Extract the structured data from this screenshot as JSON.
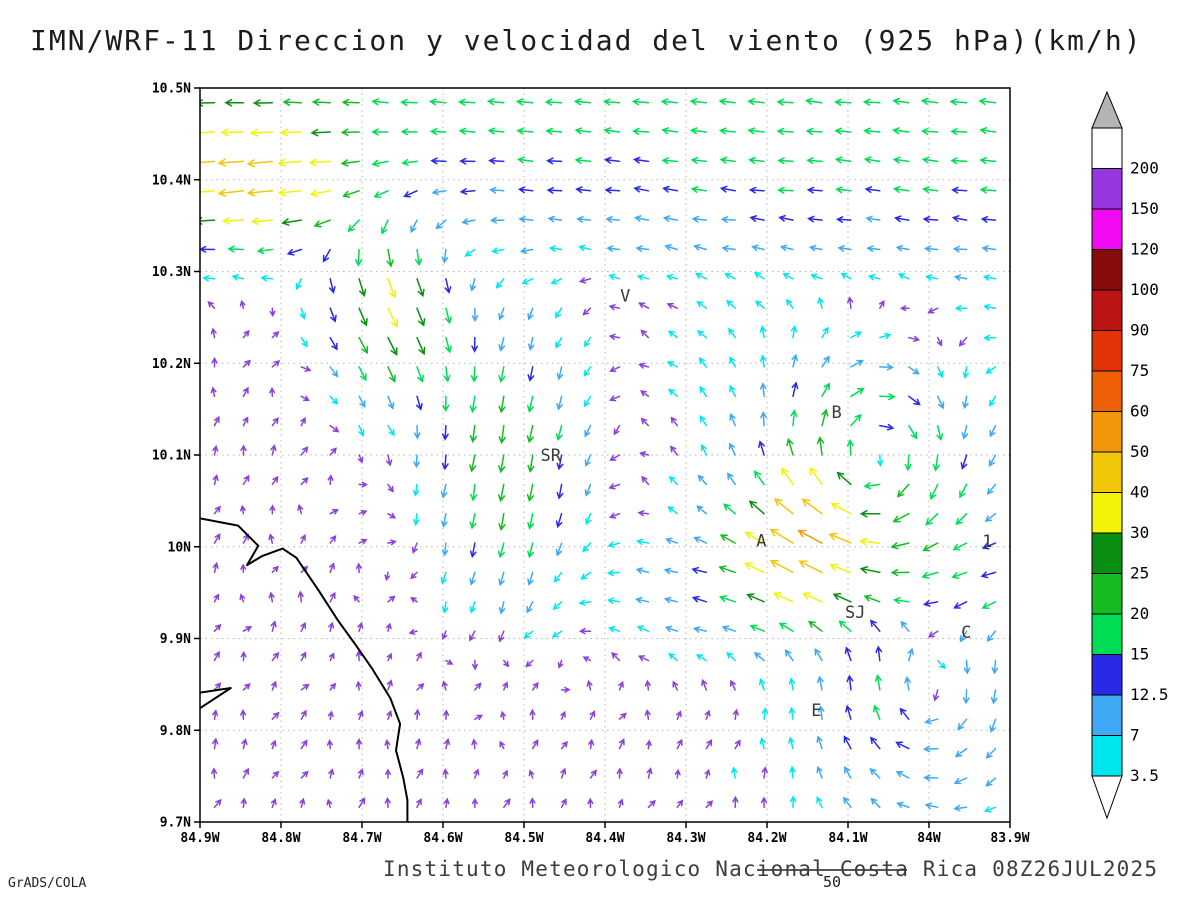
{
  "title": "IMN/WRF-11 Direccion y velocidad del viento (925 hPa)(km/h)",
  "footer": {
    "caption": "Instituto Meteorologico Nacional Costa Rica 08Z26JUL2025",
    "credit": "GrADS/COLA",
    "ref_value": "50"
  },
  "chart_data": {
    "type": "vector_field",
    "title": "IMN/WRF-11 Direccion y velocidad del viento (925 hPa)(km/h)",
    "model": "IMN/WRF-11",
    "variable": "Direccion y velocidad del viento",
    "level": "925 hPa",
    "units": "km/h",
    "valid_time": "08Z26JUL2025",
    "lon_range": [
      84.9,
      83.9
    ],
    "lat_range": [
      9.7,
      10.5
    ],
    "grid_step_deg": 0.1,
    "x_ticks": {
      "values": [
        84.9,
        84.8,
        84.7,
        84.6,
        84.5,
        84.4,
        84.3,
        84.2,
        84.1,
        84.0,
        83.9
      ],
      "labels": [
        "84.9W",
        "84.8W",
        "84.7W",
        "84.6W",
        "84.5W",
        "84.4W",
        "84.3W",
        "84.2W",
        "84.1W",
        "84W",
        "83.9W"
      ]
    },
    "y_ticks": {
      "values": [
        10.5,
        10.4,
        10.3,
        10.2,
        10.1,
        10.0,
        9.9,
        9.8,
        9.7
      ],
      "labels": [
        "10.5N",
        "10.4N",
        "10.3N",
        "10.2N",
        "10.1N",
        "10N",
        "9.9N",
        "9.8N",
        "9.7N"
      ]
    },
    "colorbar": {
      "levels": [
        3.5,
        7,
        12.5,
        15,
        20,
        25,
        30,
        40,
        50,
        60,
        75,
        90,
        100,
        120,
        150,
        200
      ],
      "labels": [
        "3.5",
        "7",
        "12.5",
        "15",
        "20",
        "25",
        "30",
        "40",
        "50",
        "60",
        "75",
        "90",
        "100",
        "120",
        "150",
        "200"
      ],
      "band_colors": [
        "#00e6ee",
        "#3fa8f5",
        "#2a2ae6",
        "#00dd55",
        "#15bb22",
        "#0b8f12",
        "#f2f20a",
        "#f2c70a",
        "#f2970a",
        "#ee5f07",
        "#e23307",
        "#bb1414",
        "#870d0d",
        "#f20af2",
        "#9636e0",
        "#ffffff"
      ],
      "below_color": "#ffffff",
      "above_triangle_color": "#b4b4b4"
    },
    "arrow_slow_color": "#8c3fd9",
    "grid": {
      "cols": 28,
      "rows": 25
    },
    "station_labels": [
      {
        "text": "V",
        "lon": 84.375,
        "lat": 10.274
      },
      {
        "text": "B",
        "lon": 84.114,
        "lat": 10.147
      },
      {
        "text": "SR",
        "lon": 84.467,
        "lat": 10.1
      },
      {
        "text": "A",
        "lon": 84.207,
        "lat": 10.007
      },
      {
        "text": "1",
        "lon": 83.928,
        "lat": 10.006
      },
      {
        "text": "SJ",
        "lon": 84.091,
        "lat": 9.929
      },
      {
        "text": "C",
        "lon": 83.954,
        "lat": 9.907
      },
      {
        "text": "E",
        "lon": 84.139,
        "lat": 9.822
      }
    ],
    "coastline": [
      [
        [
          84.9,
          10.031
        ],
        [
          84.853,
          10.023
        ],
        [
          84.828,
          10.001
        ],
        [
          84.842,
          9.98
        ],
        [
          84.823,
          9.99
        ],
        [
          84.798,
          9.998
        ],
        [
          84.781,
          9.988
        ],
        [
          84.754,
          9.953
        ],
        [
          84.73,
          9.92
        ],
        [
          84.707,
          9.892
        ],
        [
          84.688,
          9.868
        ],
        [
          84.665,
          9.835
        ],
        [
          84.653,
          9.807
        ],
        [
          84.658,
          9.778
        ],
        [
          84.649,
          9.748
        ],
        [
          84.644,
          9.724
        ],
        [
          84.644,
          9.7
        ]
      ],
      [
        [
          84.9,
          9.841
        ],
        [
          84.862,
          9.846
        ],
        [
          84.9,
          9.824
        ]
      ]
    ],
    "flow_model": {
      "base": {
        "u": 0.7,
        "v": 1.7
      },
      "noise_amp": 1.0,
      "north_band": {
        "lat0": 10.315,
        "width": 0.025,
        "u_edge": -11,
        "du_dlat": -45
      },
      "lat_bands": [
        {
          "lat0": 9.95,
          "slat": 0.07,
          "u": -18,
          "lon_edge": 84.33,
          "slon": 0.09
        },
        {
          "lat0": 10.18,
          "slat": 0.2,
          "u": -8,
          "lon_edge": 84.28,
          "slon": 0.12
        }
      ],
      "jets": [
        {
          "lon": 84.83,
          "lat": 10.4,
          "slon": 0.12,
          "slat": 0.07,
          "u": -34,
          "v": -6
        },
        {
          "lon": 84.67,
          "lat": 10.27,
          "slon": 0.08,
          "slat": 0.1,
          "u": 15,
          "v": -32
        },
        {
          "lon": 84.52,
          "lat": 10.1,
          "slon": 0.1,
          "slat": 0.15,
          "u": -4,
          "v": -26
        },
        {
          "lon": 84.16,
          "lat": 10.0,
          "slon": 0.07,
          "slat": 0.07,
          "u": -25,
          "v": 14
        }
      ],
      "vortices": [
        {
          "lon": 84.07,
          "lat": 10.09,
          "r0": 0.085,
          "strength": -20
        },
        {
          "lon": 84.0,
          "lat": 9.84,
          "r0": 0.09,
          "strength": -13
        }
      ]
    }
  }
}
